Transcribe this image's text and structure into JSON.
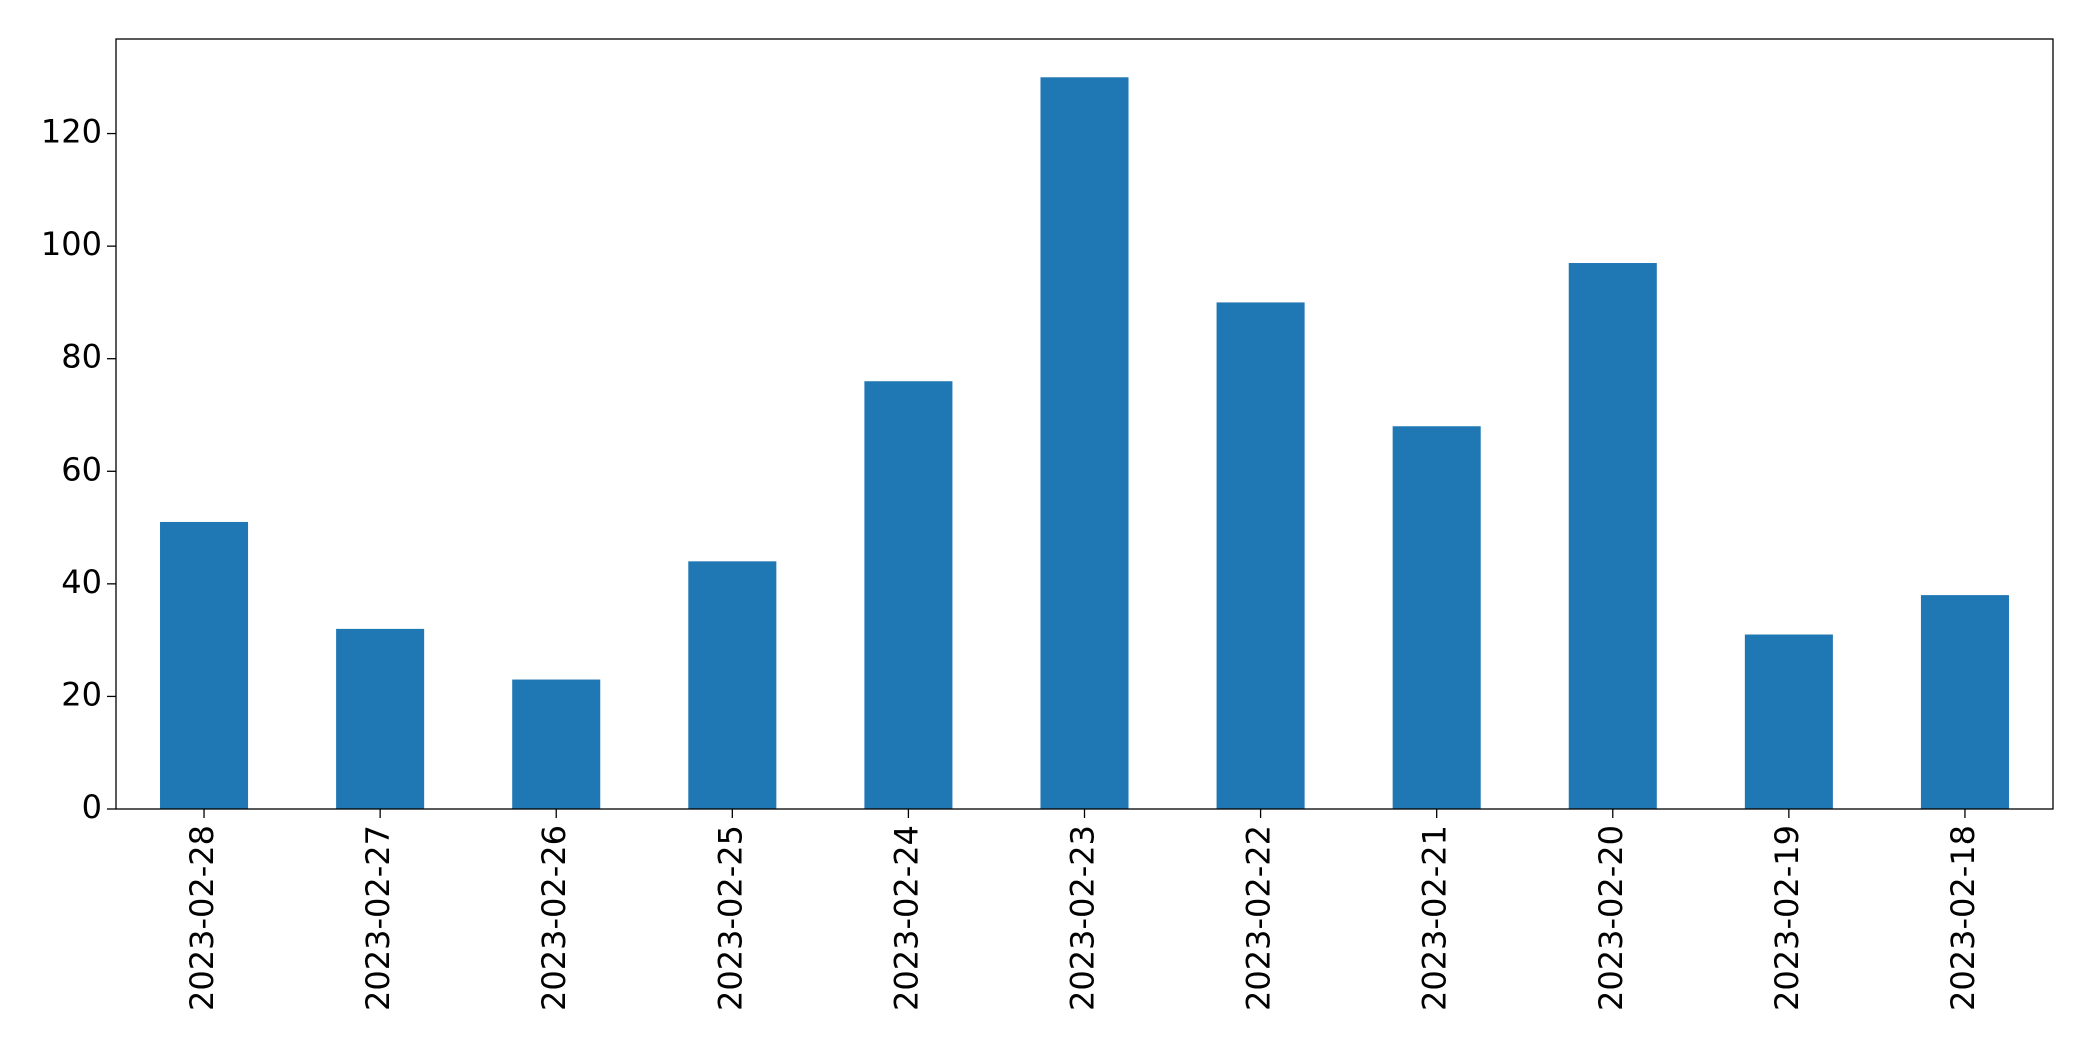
{
  "chart_data": {
    "type": "bar",
    "categories": [
      "2023-02-28",
      "2023-02-27",
      "2023-02-26",
      "2023-02-25",
      "2023-02-24",
      "2023-02-23",
      "2023-02-22",
      "2023-02-21",
      "2023-02-20",
      "2023-02-19",
      "2023-02-18"
    ],
    "values": [
      51,
      32,
      23,
      44,
      76,
      130,
      90,
      68,
      97,
      31,
      38
    ],
    "color": "#1f77b4",
    "ylim": [
      0,
      136.8
    ],
    "yticks": [
      0,
      20,
      40,
      60,
      80,
      100,
      120
    ],
    "grid": false
  }
}
